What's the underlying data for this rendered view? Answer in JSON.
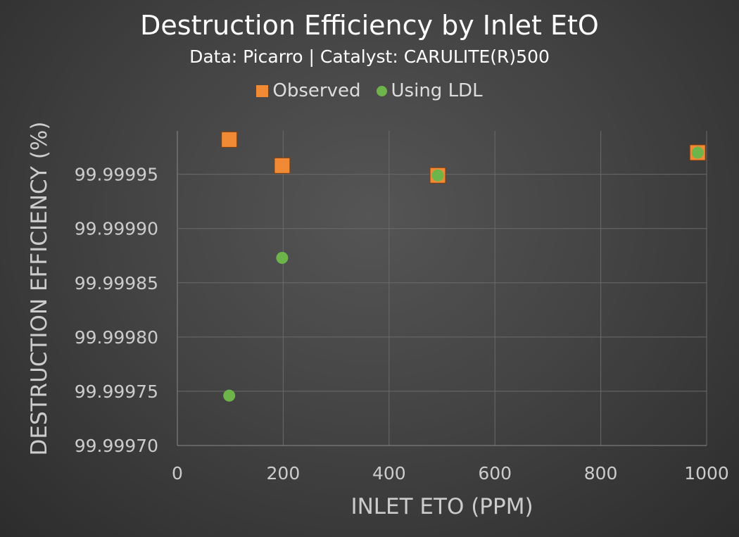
{
  "chart_data": {
    "type": "scatter",
    "title": "Destruction Efficiency by Inlet EtO",
    "subtitle": "Data: Picarro | Catalyst: CARULITE(R)500",
    "xlabel": "INLET ETO (PPM)",
    "ylabel": "DESTRUCTION EFFICIENCY (%)",
    "xlim": [
      0,
      1000
    ],
    "ylim": [
      99.9997,
      99.99999
    ],
    "xticks": [
      "0",
      "200",
      "400",
      "600",
      "800",
      "1000"
    ],
    "yticks": [
      "99.99970",
      "99.99975",
      "99.99980",
      "99.99985",
      "99.99990",
      "99.99995"
    ],
    "grid": true,
    "legend": "top",
    "series": [
      {
        "name": "Observed",
        "marker": "square",
        "color": "#f08a35",
        "x": [
          98,
          198,
          492,
          983
        ],
        "y": [
          99.999982,
          99.999958,
          99.999949,
          99.99997
        ]
      },
      {
        "name": "Using LDL",
        "marker": "circle",
        "color": "#6db54a",
        "x": [
          98,
          198,
          492,
          983
        ],
        "y": [
          99.999746,
          99.999873,
          99.999949,
          99.99997
        ]
      }
    ]
  }
}
